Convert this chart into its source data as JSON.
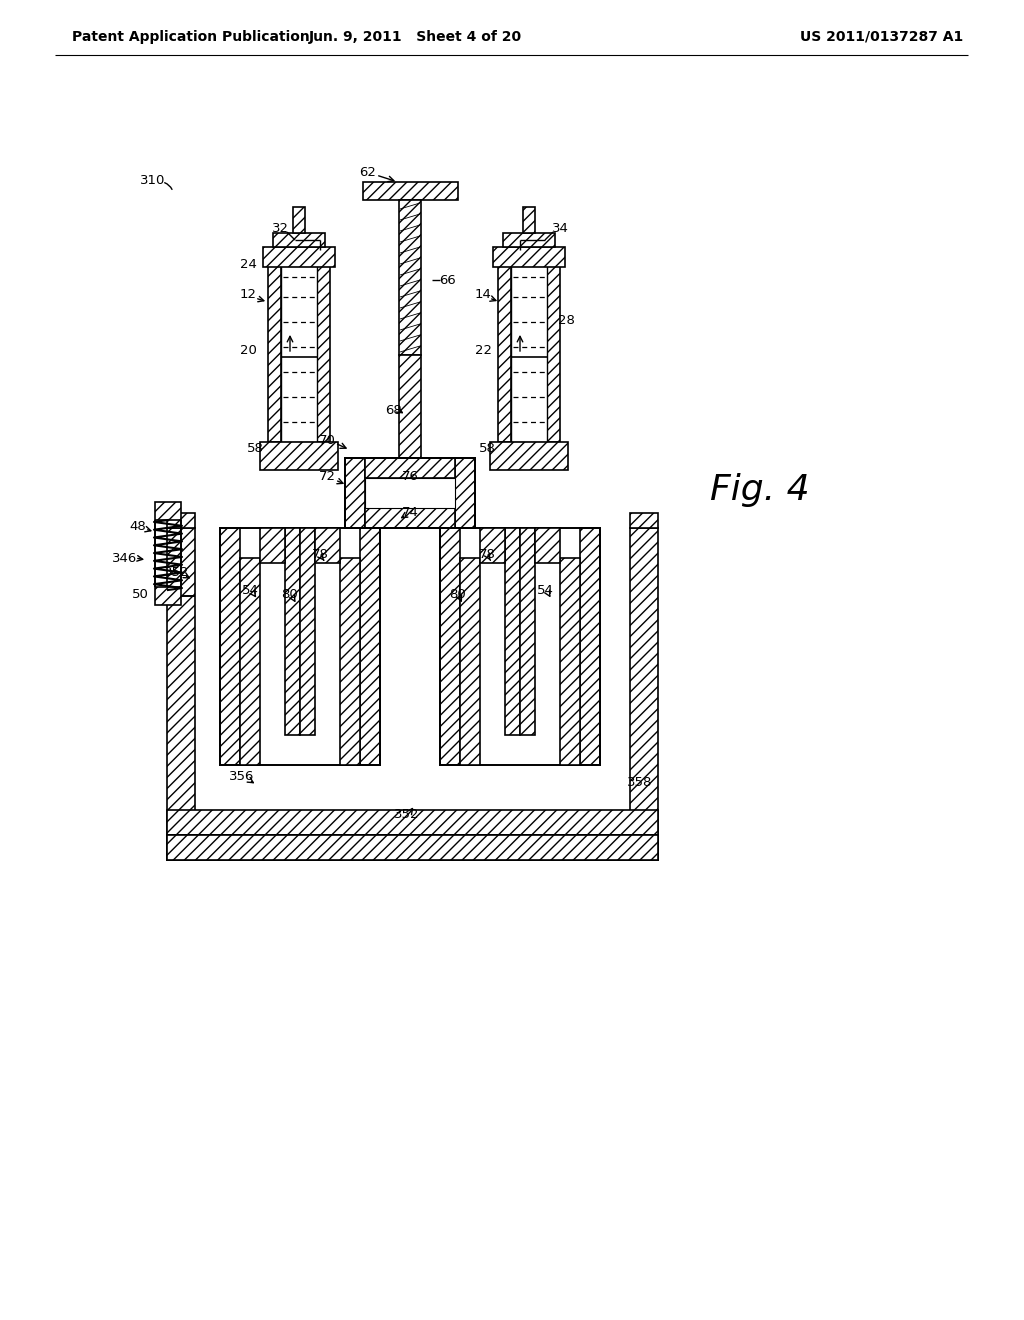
{
  "header_left": "Patent Application Publication",
  "header_mid": "Jun. 9, 2011   Sheet 4 of 20",
  "header_right": "US 2011/0137287 A1",
  "fig_label": "Fig. 4",
  "bg_color": "#ffffff"
}
